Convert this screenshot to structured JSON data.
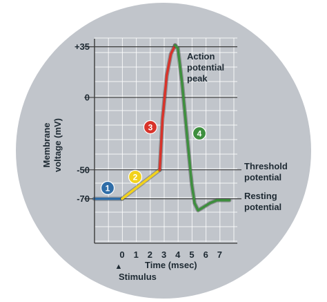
{
  "chart_data": {
    "type": "line",
    "xlabel": "Time (msec)",
    "ylabel": "Membrane voltage (mV)",
    "x_ticks": [
      "0",
      "1",
      "2",
      "3",
      "4",
      "5",
      "6",
      "7"
    ],
    "y_ticks": [
      {
        "value": 35,
        "label": "+35"
      },
      {
        "value": 0,
        "label": "0"
      },
      {
        "value": -50,
        "label": "-50"
      },
      {
        "value": -70,
        "label": "-70"
      }
    ],
    "xlim": [
      -2,
      7.7
    ],
    "ylim": [
      -100,
      40
    ],
    "grid": true,
    "reference_lines": [
      {
        "y": 35,
        "label": "Action potential peak"
      },
      {
        "y": -50,
        "label": "Threshold potential"
      },
      {
        "y": -70,
        "label": "Resting potential"
      }
    ],
    "x_annotation": {
      "x": 0,
      "label": "Stimulus"
    },
    "series": [
      {
        "color": "#2f6da8",
        "number": "1",
        "x": [
          -2,
          0
        ],
        "y": [
          -70,
          -70
        ]
      },
      {
        "color": "#f2d21b",
        "number": "2",
        "x": [
          0,
          2.7
        ],
        "y": [
          -70,
          -50
        ]
      },
      {
        "color": "#d8332a",
        "number": "3",
        "x": [
          2.7,
          2.9,
          3.2,
          3.5,
          3.8
        ],
        "y": [
          -50,
          -15,
          15,
          30,
          36
        ]
      },
      {
        "color": "#3e8f3e",
        "number": "4",
        "x": [
          3.8,
          4.0,
          4.3,
          4.7,
          5.0,
          5.2,
          5.45,
          5.8,
          6.3,
          6.8,
          7.7
        ],
        "y": [
          36,
          34,
          10,
          -30,
          -60,
          -73,
          -78,
          -76,
          -73,
          -71,
          -71
        ]
      }
    ],
    "colors": {
      "circle": "#c1c5cb",
      "grid": "#ffffff",
      "text": "#1e2a33",
      "reference_line": "#2a2a2a"
    }
  }
}
